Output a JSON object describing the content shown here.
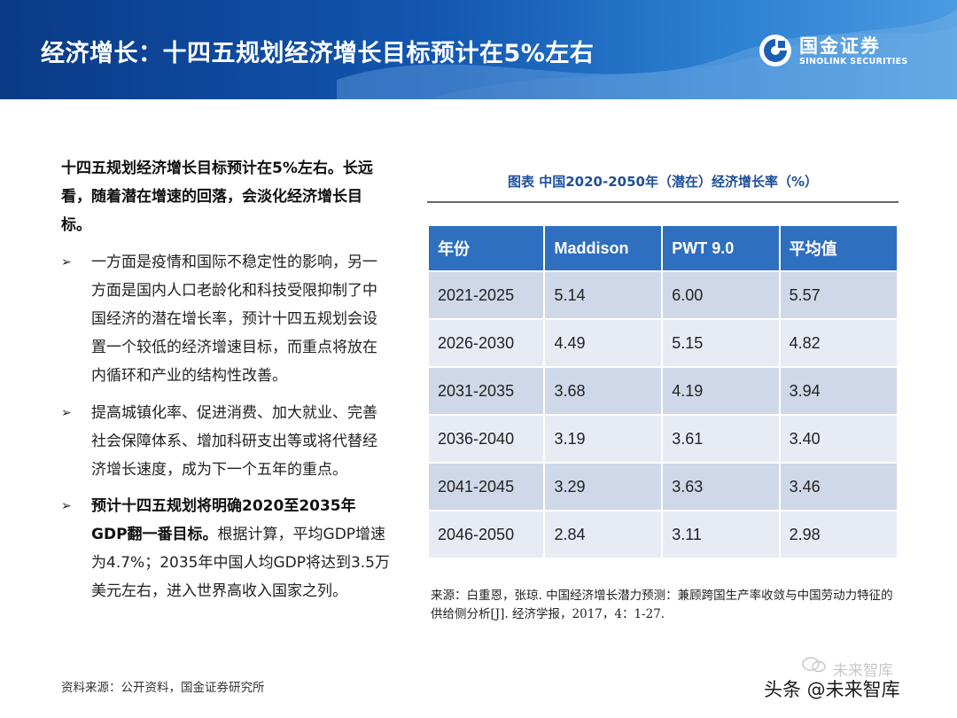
{
  "header": {
    "title": "经济增长：十四五规划经济增长目标预计在5%左右",
    "logo_cn": "国金证券",
    "logo_en": "SINOLINK SECURITIES",
    "gradient_start": "#0a3a86",
    "gradient_end": "#4a9be0"
  },
  "lead": "十四五规划经济增长目标预计在5%左右。长远看，随着潜在增速的回落，会淡化经济增长目标。",
  "bullets": [
    {
      "text": "一方面是疫情和国际不稳定性的影响，另一方面是国内人口老龄化和科技受限抑制了中国经济的潜在增长率，预计十四五规划会设置一个较低的经济增速目标，而重点将放在内循环和产业的结构性改善。"
    },
    {
      "text": "提高城镇化率、促进消费、加大就业、完善社会保障体系、增加科研支出等或将代替经济增长速度，成为下一个五年的重点。"
    },
    {
      "bold": "预计十四五规划将明确2020至2035年GDP翻一番目标。",
      "text": "根据计算，平均GDP增速为4.7%；2035年中国人均GDP将达到3.5万美元左右，进入世界高收入国家之列。"
    }
  ],
  "bullet_marker": "➢",
  "source_left": "资料来源：公开资料，国金证券研究所",
  "table": {
    "title": "图表  中国2020-2050年（潜在）经济增长率（%）",
    "headers": [
      "年份",
      "Maddison",
      "PWT 9.0",
      "平均值"
    ],
    "rows": [
      [
        "2021-2025",
        "5.14",
        "6.00",
        "5.57"
      ],
      [
        "2026-2030",
        "4.49",
        "5.15",
        "4.82"
      ],
      [
        "2031-2035",
        "3.68",
        "4.19",
        "3.94"
      ],
      [
        "2036-2040",
        "3.19",
        "3.61",
        "3.40"
      ],
      [
        "2041-2045",
        "3.29",
        "3.63",
        "3.46"
      ],
      [
        "2046-2050",
        "2.84",
        "3.11",
        "2.98"
      ]
    ],
    "header_color": "#2f6fbf",
    "source": "来源：白重恩，张琼. 中国经济增长潜力预测：兼顾跨国生产率收敛与中国劳动力特征的供给侧分析[J]. 经济学报，2017，4：1-27."
  },
  "watermark": {
    "small": "未来智库",
    "main": "头条 @未来智库"
  }
}
